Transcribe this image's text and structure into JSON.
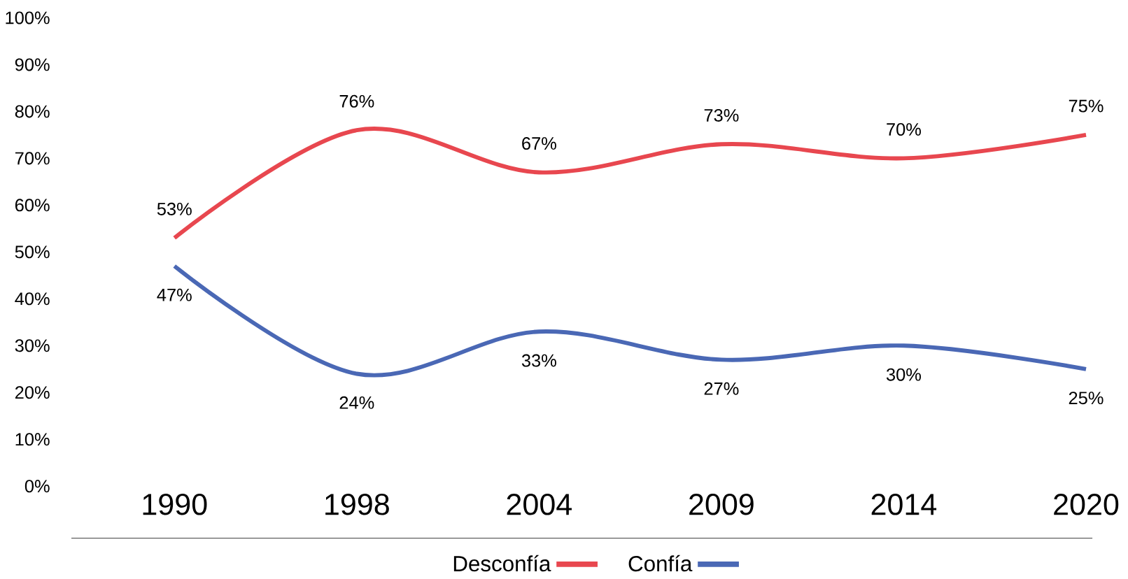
{
  "chart_data": {
    "type": "line",
    "categories": [
      "1990",
      "1998",
      "2004",
      "2009",
      "2014",
      "2020"
    ],
    "series": [
      {
        "name": "Desconfía",
        "color": "#e8474f",
        "values": [
          53,
          76,
          67,
          73,
          70,
          75
        ],
        "value_labels": [
          "53%",
          "76%",
          "67%",
          "73%",
          "70%",
          "75%"
        ]
      },
      {
        "name": "Confía",
        "color": "#4a68b5",
        "values": [
          47,
          24,
          33,
          27,
          30,
          25
        ],
        "value_labels": [
          "47%",
          "24%",
          "33%",
          "27%",
          "30%",
          "25%"
        ]
      }
    ],
    "ylim": [
      0,
      100
    ],
    "yticks": [
      {
        "value": 0,
        "label": "0%"
      },
      {
        "value": 10,
        "label": "10%"
      },
      {
        "value": 20,
        "label": "20%"
      },
      {
        "value": 30,
        "label": "30%"
      },
      {
        "value": 40,
        "label": "40%"
      },
      {
        "value": 50,
        "label": "50%"
      },
      {
        "value": 60,
        "label": "60%"
      },
      {
        "value": 70,
        "label": "70%"
      },
      {
        "value": 80,
        "label": "80%"
      },
      {
        "value": 90,
        "label": "90%"
      },
      {
        "value": 100,
        "label": "100%"
      }
    ],
    "grid": false,
    "legend": "bottom",
    "marker": "none",
    "line_style": "solid"
  }
}
